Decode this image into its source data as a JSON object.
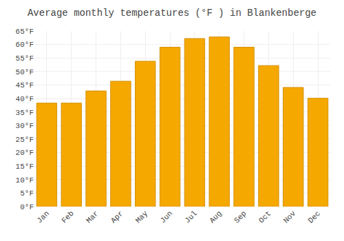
{
  "chart_data": {
    "type": "bar",
    "title": "Average monthly temperatures (°F ) in Blankenberge",
    "categories": [
      "Jan",
      "Feb",
      "Mar",
      "Apr",
      "May",
      "Jun",
      "Jul",
      "Aug",
      "Sep",
      "Oct",
      "Nov",
      "Dec"
    ],
    "values": [
      38.3,
      38.3,
      42.8,
      46.4,
      53.8,
      59.0,
      62.2,
      62.8,
      59.0,
      52.2,
      44.1,
      40.1
    ],
    "color": "#F5A800",
    "ylim": [
      0,
      65
    ],
    "yticks": [
      {
        "value": 0,
        "label": "0°F"
      },
      {
        "value": 5,
        "label": "5°F"
      },
      {
        "value": 10,
        "label": "10°F"
      },
      {
        "value": 15,
        "label": "15°F"
      },
      {
        "value": 20,
        "label": "20°F"
      },
      {
        "value": 25,
        "label": "25°F"
      },
      {
        "value": 30,
        "label": "30°F"
      },
      {
        "value": 35,
        "label": "35°F"
      },
      {
        "value": 40,
        "label": "40°F"
      },
      {
        "value": 45,
        "label": "45°F"
      },
      {
        "value": 50,
        "label": "50°F"
      },
      {
        "value": 55,
        "label": "55°F"
      },
      {
        "value": 60,
        "label": "60°F"
      },
      {
        "value": 65,
        "label": "65°F"
      }
    ],
    "grid": true
  }
}
